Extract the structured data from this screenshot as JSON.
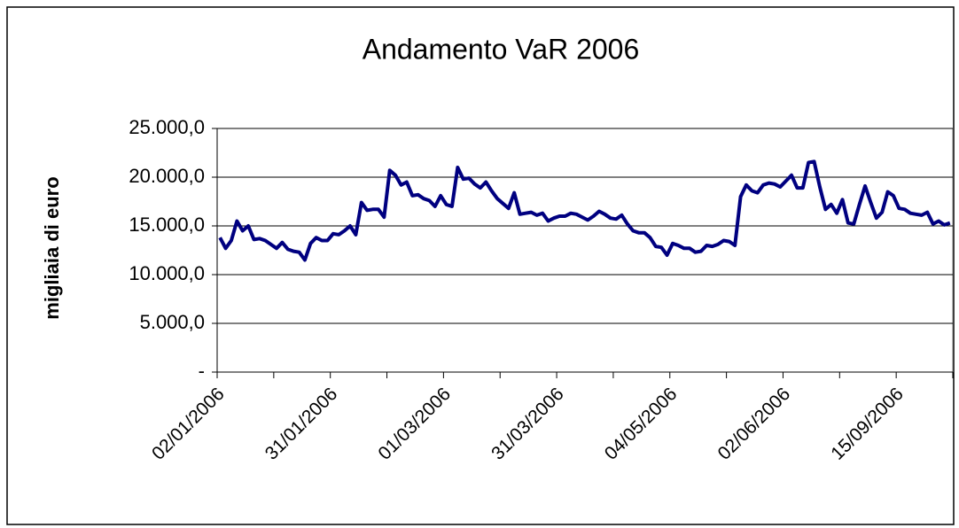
{
  "chart_data": {
    "type": "line",
    "title": "Andamento VaR 2006",
    "y_label": "migliaia di euro",
    "categories": [
      "02/01/2006",
      null,
      null,
      null,
      null,
      null,
      null,
      null,
      null,
      null,
      null,
      null,
      null,
      null,
      null,
      null,
      null,
      null,
      null,
      null,
      "31/01/2006",
      null,
      null,
      null,
      null,
      null,
      null,
      null,
      null,
      null,
      null,
      null,
      null,
      null,
      null,
      null,
      null,
      null,
      null,
      null,
      "01/03/2006",
      null,
      null,
      null,
      null,
      null,
      null,
      null,
      null,
      null,
      null,
      null,
      null,
      null,
      null,
      null,
      null,
      null,
      null,
      null,
      "31/03/2006",
      null,
      null,
      null,
      null,
      null,
      null,
      null,
      null,
      null,
      null,
      null,
      null,
      null,
      null,
      null,
      null,
      null,
      null,
      null,
      "04/05/2006",
      null,
      null,
      null,
      null,
      null,
      null,
      null,
      null,
      null,
      null,
      null,
      null,
      null,
      null,
      null,
      null,
      null,
      null,
      null,
      "02/06/2006",
      null,
      null,
      null,
      null,
      null,
      null,
      null,
      null,
      null,
      null,
      null,
      null,
      null,
      null,
      null,
      null,
      null,
      null,
      null,
      "15/09/2006",
      null,
      null,
      null,
      null,
      null,
      null,
      null,
      null,
      null
    ],
    "series": [
      {
        "name": "VaR",
        "color": "#000080",
        "values": [
          13800,
          12700,
          13500,
          15500,
          14500,
          15000,
          13600,
          13700,
          13500,
          13100,
          12700,
          13300,
          12600,
          12400,
          12300,
          11500,
          13200,
          13800,
          13500,
          13500,
          14200,
          14100,
          14500,
          15000,
          14100,
          17400,
          16600,
          16700,
          16700,
          15900,
          20700,
          20200,
          19200,
          19500,
          18100,
          18200,
          17800,
          17600,
          17000,
          18100,
          17200,
          17000,
          21000,
          19800,
          19900,
          19300,
          18900,
          19500,
          18600,
          17800,
          17300,
          16800,
          18400,
          16200,
          16300,
          16400,
          16100,
          16300,
          15500,
          15800,
          16000,
          16000,
          16300,
          16200,
          15900,
          15600,
          16000,
          16500,
          16200,
          15800,
          15700,
          16100,
          15200,
          14500,
          14300,
          14300,
          13800,
          12900,
          12800,
          12000,
          13200,
          13000,
          12700,
          12700,
          12300,
          12400,
          13000,
          12900,
          13100,
          13500,
          13400,
          13000,
          18000,
          19200,
          18600,
          18400,
          19200,
          19400,
          19300,
          19000,
          19600,
          20200,
          18900,
          18900,
          21500,
          21600,
          19000,
          16700,
          17200,
          16300,
          17700,
          15300,
          15200,
          17200,
          19100,
          17400,
          15800,
          16400,
          18500,
          18100,
          16800,
          16700,
          16300,
          16200,
          16100,
          16400,
          15200,
          15500,
          15100,
          15300
        ]
      }
    ],
    "ylim": [
      0,
      25000
    ],
    "yticks": [
      {
        "value": 0,
        "label": "-"
      },
      {
        "value": 5000,
        "label": "5.000,0"
      },
      {
        "value": 10000,
        "label": "10.000,0"
      },
      {
        "value": 15000,
        "label": "15.000,0"
      },
      {
        "value": 20000,
        "label": "20.000,0"
      },
      {
        "value": 25000,
        "label": "25.000,0"
      }
    ],
    "grid": true
  }
}
